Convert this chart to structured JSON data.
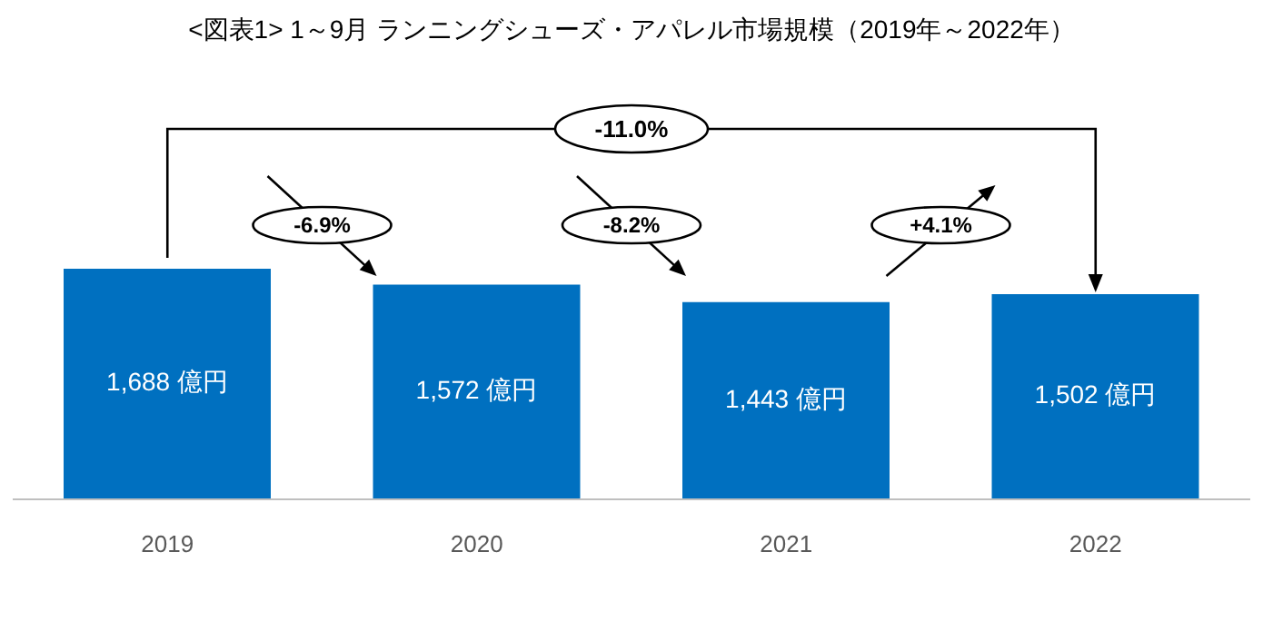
{
  "chart_data": {
    "type": "bar",
    "title": "<図表1> 1～9月  ランニングシューズ・アパレル市場規模（2019年～2022年）",
    "categories": [
      "2019",
      "2020",
      "2021",
      "2022"
    ],
    "values": [
      1688,
      1572,
      1443,
      1502
    ],
    "value_labels": [
      "1,688 億円",
      "1,572 億円",
      "1,443 億円",
      "1,502 億円"
    ],
    "color": "#0070c0",
    "annotations": [
      "-6.9%",
      "-8.2%",
      "+4.1%",
      "-11.0%"
    ],
    "legend": false,
    "grid": false
  }
}
